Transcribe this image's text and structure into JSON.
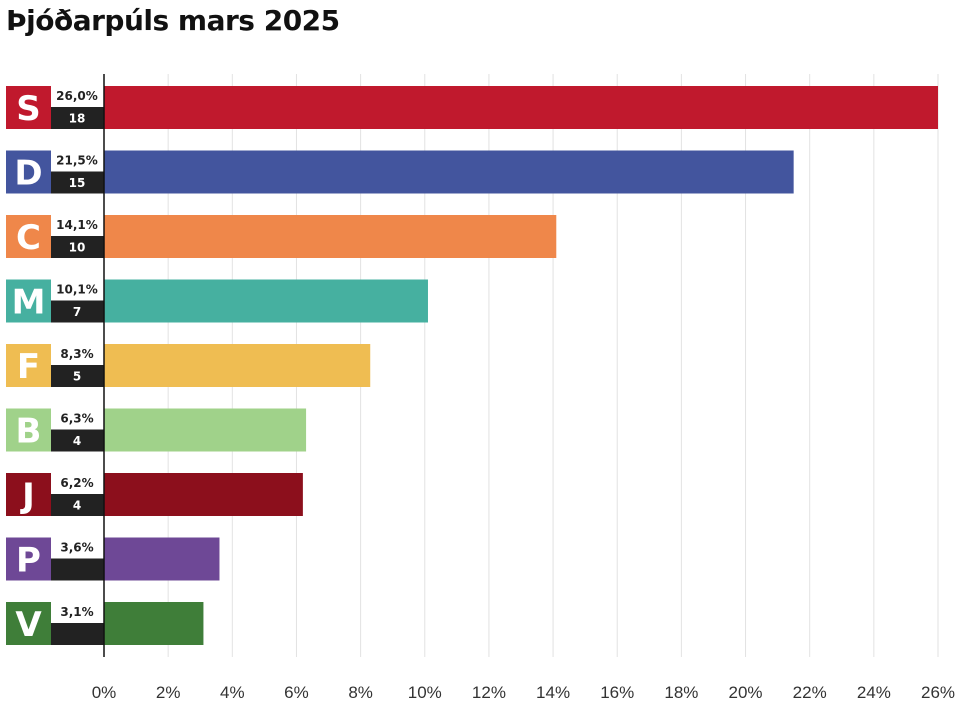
{
  "chart_data": {
    "type": "bar",
    "orientation": "horizontal",
    "title": "Þjóðarpúls mars 2025",
    "xlabel": "",
    "ylabel": "",
    "xlim": [
      0,
      26
    ],
    "grid": true,
    "ticks": [
      "0%",
      "2%",
      "4%",
      "6%",
      "8%",
      "10%",
      "12%",
      "14%",
      "16%",
      "18%",
      "20%",
      "22%",
      "24%",
      "26%"
    ],
    "tick_values": [
      0,
      2,
      4,
      6,
      8,
      10,
      12,
      14,
      16,
      18,
      20,
      22,
      24,
      26
    ],
    "categories": [
      "S",
      "D",
      "C",
      "M",
      "F",
      "B",
      "J",
      "P",
      "V"
    ],
    "values": [
      26.0,
      21.5,
      14.1,
      10.1,
      8.3,
      6.3,
      6.2,
      3.6,
      3.1
    ],
    "value_labels": [
      "26,0%",
      "21,5%",
      "14,1%",
      "10,1%",
      "8,3%",
      "6,3%",
      "6,2%",
      "3,6%",
      "3,1%"
    ],
    "seats": [
      "18",
      "15",
      "10",
      "7",
      "5",
      "4",
      "4",
      "",
      ""
    ],
    "colors": [
      "#c0192d",
      "#43559e",
      "#ef874a",
      "#46b0a0",
      "#efbd52",
      "#a0d28a",
      "#8c0f1c",
      "#6e4896",
      "#3f7e39"
    ]
  }
}
